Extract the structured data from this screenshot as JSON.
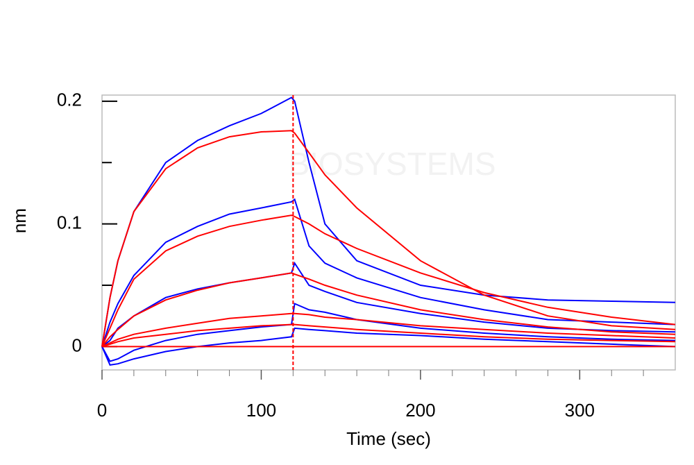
{
  "chart_data": {
    "type": "line",
    "watermark": "BIOSYSTEMS",
    "xlabel": "Time (sec)",
    "ylabel": "nm",
    "x": [
      0,
      5,
      10,
      20,
      40,
      60,
      80,
      100,
      119,
      121,
      130,
      140,
      160,
      200,
      240,
      280,
      320,
      360
    ],
    "xlim": [
      0,
      360
    ],
    "xticks": [
      0,
      100,
      200,
      300
    ],
    "xticks_minor": [
      20,
      40,
      60,
      80,
      120,
      140,
      160,
      180,
      220,
      240,
      260,
      280,
      320,
      340
    ],
    "ylim": [
      -0.019,
      0.205
    ],
    "yticks": [
      0,
      0.1,
      0.2
    ],
    "yticks_minor": [
      0.05,
      0.15
    ],
    "vline": {
      "x": 120,
      "color": "#ff0000"
    },
    "series": [
      {
        "color": "#0000ff",
        "values": [
          0,
          0.04,
          0.07,
          0.11,
          0.15,
          0.168,
          0.18,
          0.19,
          0.203,
          0.2,
          0.15,
          0.1,
          0.07,
          0.05,
          0.042,
          0.038,
          0.037,
          0.036
        ]
      },
      {
        "color": "#0000ff",
        "values": [
          0,
          0.02,
          0.035,
          0.058,
          0.085,
          0.098,
          0.108,
          0.113,
          0.118,
          0.12,
          0.082,
          0.068,
          0.056,
          0.04,
          0.03,
          0.022,
          0.02,
          0.018
        ]
      },
      {
        "color": "#0000ff",
        "values": [
          0,
          0.005,
          0.015,
          0.025,
          0.04,
          0.047,
          0.052,
          0.056,
          0.06,
          0.068,
          0.05,
          0.045,
          0.036,
          0.027,
          0.02,
          0.015,
          0.013,
          0.012
        ]
      },
      {
        "color": "#0000ff",
        "values": [
          0,
          -0.012,
          -0.01,
          -0.003,
          0.005,
          0.01,
          0.013,
          0.016,
          0.018,
          0.035,
          0.03,
          0.028,
          0.022,
          0.015,
          0.011,
          0.008,
          0.006,
          0.005
        ]
      },
      {
        "color": "#0000ff",
        "values": [
          0,
          -0.015,
          -0.014,
          -0.01,
          -0.004,
          0,
          0.003,
          0.005,
          0.008,
          0.015,
          0.014,
          0.013,
          0.011,
          0.009,
          0.006,
          0.004,
          0.002,
          0
        ]
      },
      {
        "color": "#ff0000",
        "values": [
          0,
          0.04,
          0.07,
          0.11,
          0.145,
          0.162,
          0.171,
          0.175,
          0.176,
          0.174,
          0.158,
          0.14,
          0.113,
          0.07,
          0.042,
          0.025,
          0.017,
          0.014
        ]
      },
      {
        "color": "#ff0000",
        "values": [
          0,
          0.015,
          0.03,
          0.055,
          0.078,
          0.09,
          0.098,
          0.103,
          0.107,
          0.106,
          0.1,
          0.092,
          0.08,
          0.06,
          0.044,
          0.032,
          0.024,
          0.018
        ]
      },
      {
        "color": "#ff0000",
        "values": [
          0,
          0.008,
          0.014,
          0.025,
          0.038,
          0.046,
          0.052,
          0.056,
          0.06,
          0.059,
          0.055,
          0.05,
          0.042,
          0.03,
          0.022,
          0.016,
          0.012,
          0.01
        ]
      },
      {
        "color": "#ff0000",
        "values": [
          0,
          0.003,
          0.006,
          0.01,
          0.015,
          0.019,
          0.023,
          0.025,
          0.027,
          0.027,
          0.026,
          0.024,
          0.022,
          0.017,
          0.014,
          0.011,
          0.009,
          0.007
        ]
      },
      {
        "color": "#ff0000",
        "values": [
          0,
          0.002,
          0.004,
          0.007,
          0.01,
          0.013,
          0.015,
          0.017,
          0.018,
          0.018,
          0.017,
          0.016,
          0.014,
          0.011,
          0.008,
          0.006,
          0.005,
          0.004
        ]
      },
      {
        "color": "#ff0000",
        "values": [
          0,
          0,
          0,
          0,
          0,
          0,
          0,
          0,
          0,
          0,
          0,
          0,
          0,
          0,
          0,
          0,
          0,
          0
        ]
      }
    ]
  }
}
